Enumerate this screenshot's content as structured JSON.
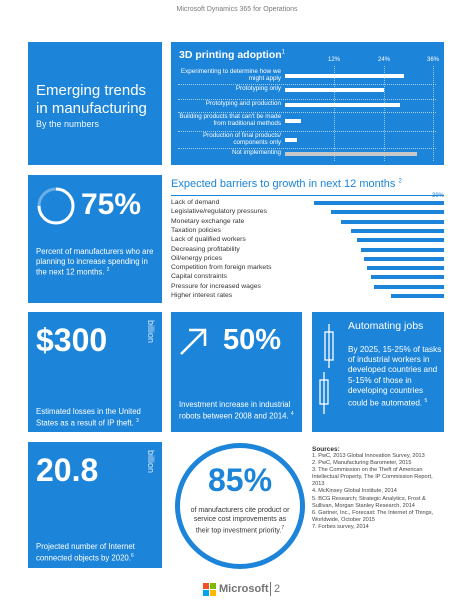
{
  "header": {
    "text": "Microsoft Dynamics 365 for Operations"
  },
  "title_tile": {
    "line1": "Emerging trends",
    "line2": "in manufacturing",
    "subtitle": "By the numbers"
  },
  "printing": {
    "title": "3D printing adoption",
    "title_ref": "1",
    "chart_data": {
      "type": "bar",
      "title": "3D printing adoption",
      "ticks": [
        "12%",
        "24%",
        "36%"
      ],
      "xlim": [
        0,
        36
      ],
      "categories": [
        "Experimenting to determine how we might apply",
        "Prototyping only",
        "Prototyping and production",
        "Building products that can't be made from traditional methods",
        "Production of final products/ components only",
        "Not implementing"
      ],
      "values": [
        29,
        24,
        28,
        4,
        3,
        32
      ],
      "bar_colors": [
        "#ffffff",
        "#ffffff",
        "#ffffff",
        "#ffffff",
        "#ffffff",
        "#c8c8c8"
      ]
    }
  },
  "stat75": {
    "value": "75%",
    "ring_fraction": 0.75,
    "desc": "Percent of manufacturers who are planning to increase spending in the next 12 months.",
    "ref": "2"
  },
  "barriers": {
    "title": "Expected barriers to growth in next 12 months",
    "title_ref": "2",
    "chart_data": {
      "type": "bar",
      "title": "Expected barriers to growth in next 12 months",
      "max_label": "39%",
      "categories": [
        "Lack of demand",
        "Legislative/regulatory pressures",
        "Monetary exchange rate",
        "Taxation policies",
        "Lack of qualified workers",
        "Decreasing profitability",
        "Oil/energy prices",
        "Competition from foreign markets",
        "Capital constraints",
        "Pressure for increased wages",
        "Higher interest rates"
      ],
      "values": [
        39,
        34,
        31,
        28,
        26,
        25,
        24,
        23,
        22,
        21,
        16
      ]
    }
  },
  "stat300": {
    "value": "$300",
    "unit": "billion",
    "desc": "Estimated losses in the United States as a result of IP theft.",
    "ref": "3"
  },
  "stat50": {
    "value": "50%",
    "desc": "Investment increase in industrial robots between 2008 and 2014.",
    "ref": "4"
  },
  "automating": {
    "title": "Automating jobs",
    "desc": "By 2025, 15-25% of tasks of industrial workers in developed countries and 5-15% of those in developing countries could be automated.",
    "ref": "5"
  },
  "stat208": {
    "value": "20.8",
    "unit": "billion",
    "desc": "Projected number of Internet connected objects by 2020.",
    "ref": "6"
  },
  "stat85": {
    "value": "85%",
    "desc": "of manufacturers cite product or service cost improvements as their top investment priority.",
    "ref": "7"
  },
  "sources": {
    "title": "Sources:",
    "items": [
      "1. PwC, 2013 Global Innovation Survey, 2013",
      "2. PwC, Manufacturing Barometer, 2015",
      "3. The Commission on the Theft of American Intellectual Property, The IP Commission Report, 2013",
      "4. McKinsey Global Institute, 2014",
      "5. BCG Research; Strategic Analytics, Frost & Sullivan, Morgan Stanley Research, 2014",
      "6. Gartner, Inc., Forecast: The Internet of Things, Worldwide, October 2015",
      "7. Forbes survey, 2014"
    ]
  },
  "footer": {
    "brand": "Microsoft",
    "page": "2"
  },
  "colors": {
    "accent": "#1c84d9",
    "bar_grey": "#c8c8c8",
    "logo_red": "#f25022",
    "logo_green": "#7fba00",
    "logo_blue": "#00a4ef",
    "logo_yellow": "#ffb900"
  }
}
